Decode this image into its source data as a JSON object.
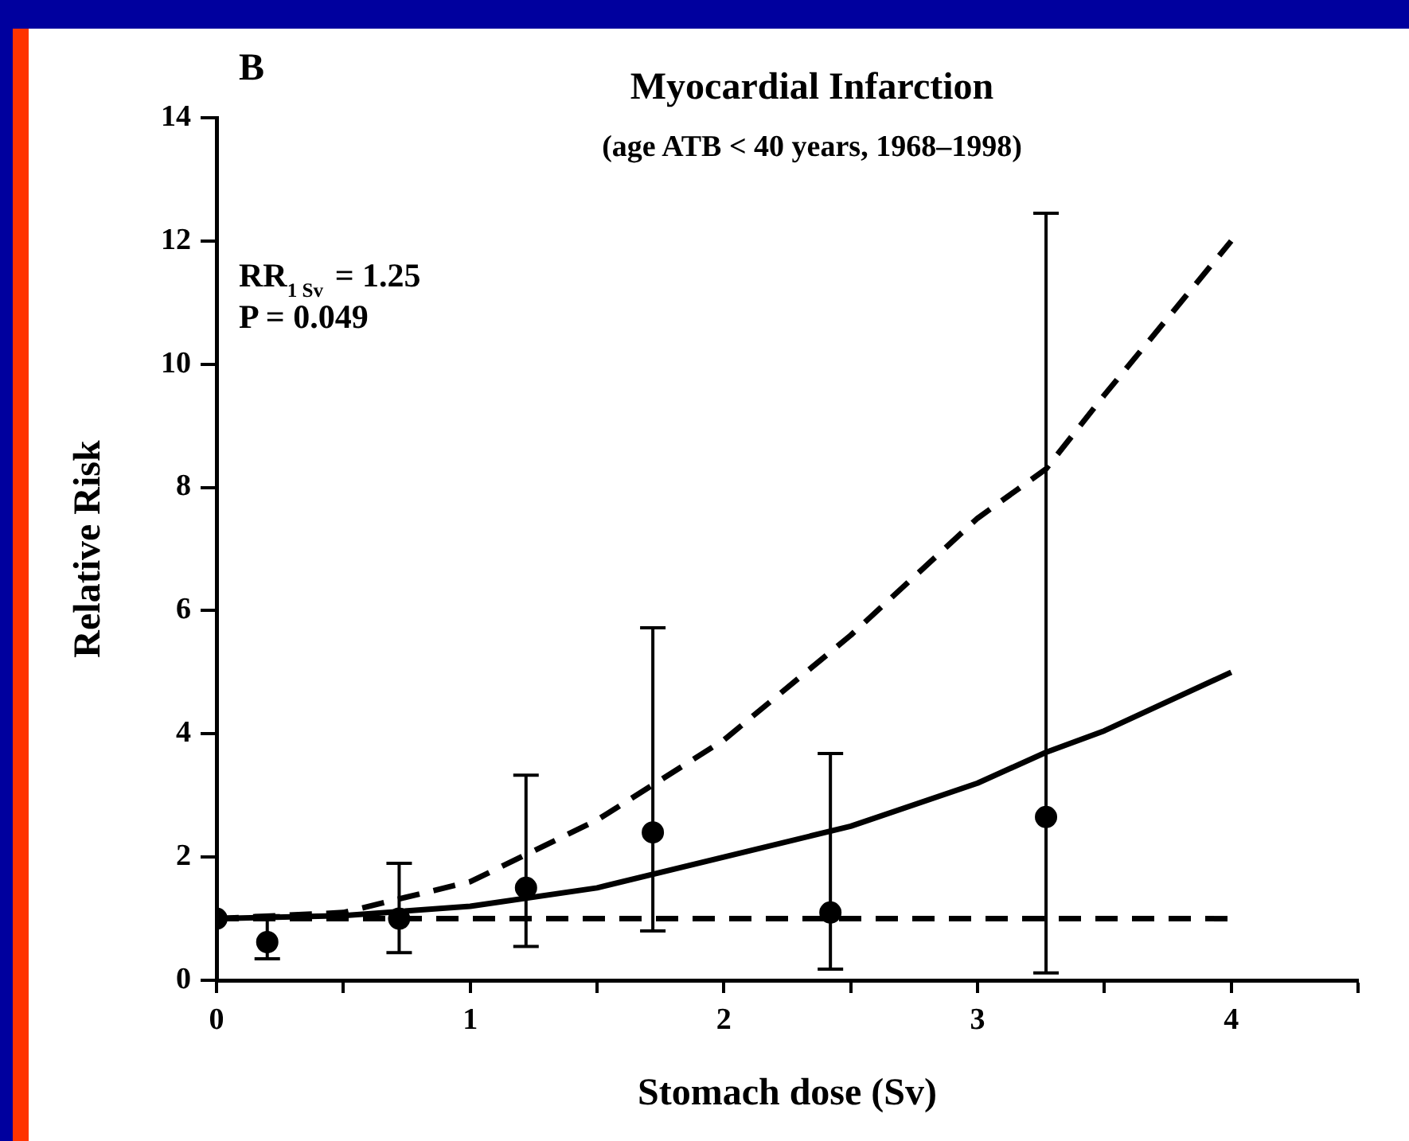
{
  "chart_data": {
    "type": "scatter",
    "title": "Myocardial Infarction",
    "subtitle": "(age ATB < 40 years, 1968–1998)",
    "xlabel": "Stomach dose (Sv)",
    "ylabel": "Relative Risk",
    "annotations": [
      "B",
      "RR$_{1 Sv}$ = 1.25",
      "P = 0.049"
    ],
    "xlim": [
      0,
      4.5
    ],
    "xticks": [
      0,
      {
        "value": 0.5,
        "label": null
      },
      1,
      {
        "value": 1.5,
        "label": null
      },
      2,
      {
        "value": 2.5,
        "label": null
      },
      3,
      {
        "value": 3.5,
        "label": null
      },
      4,
      {
        "value": 4.5,
        "label": null
      }
    ],
    "ylim": [
      0,
      14
    ],
    "yticks": [
      0,
      2,
      4,
      6,
      8,
      10,
      12,
      14
    ],
    "grid": false,
    "legend": false,
    "series": [
      {
        "type": "line",
        "color": "#000000",
        "marker": "none",
        "line_style": "dashed",
        "x": [
          0,
          4
        ],
        "values": [
          1,
          1
        ]
      },
      {
        "type": "line",
        "color": "#000000",
        "marker": "none",
        "line_style": "solid",
        "x": [
          0,
          0.5,
          1,
          1.5,
          2,
          2.5,
          3,
          3.27,
          3.5,
          4
        ],
        "values": [
          1,
          1.05,
          1.2,
          1.5,
          2,
          2.5,
          3.2,
          3.7,
          4.05,
          5
        ]
      },
      {
        "type": "line",
        "color": "#000000",
        "marker": "none",
        "line_style": "dashed",
        "x": [
          0,
          0.5,
          1,
          1.5,
          2,
          2.5,
          3,
          3.27,
          3.5,
          4
        ],
        "values": [
          1,
          1.1,
          1.6,
          2.6,
          3.9,
          5.6,
          7.5,
          8.3,
          9.5,
          12
        ]
      },
      {
        "type": "scatter",
        "color": "#000000",
        "marker": "circle",
        "x": [
          0,
          0.2,
          0.72,
          1.22,
          1.72,
          2.42,
          3.27
        ],
        "values": [
          1,
          0.62,
          1.0,
          1.5,
          2.4,
          1.1,
          2.65
        ],
        "errors": [
          null,
          [
            0.35,
            1.05
          ],
          [
            0.45,
            1.9
          ],
          [
            0.55,
            3.33
          ],
          [
            0.8,
            5.72
          ],
          [
            0.18,
            3.68
          ],
          [
            0.12,
            12.45
          ]
        ]
      }
    ]
  }
}
